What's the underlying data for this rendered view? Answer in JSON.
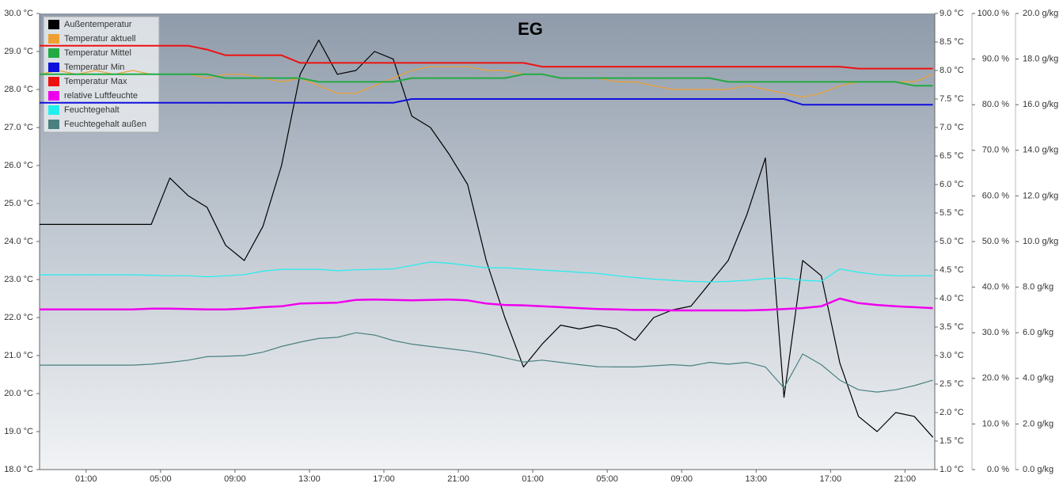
{
  "chart_data": {
    "type": "line",
    "title": "EG",
    "x": [
      0,
      1,
      2,
      3,
      4,
      5,
      6,
      7,
      8,
      9,
      10,
      11,
      12,
      13,
      14,
      15,
      16,
      17,
      18,
      19,
      20,
      21,
      22,
      23,
      24,
      25,
      26,
      27,
      28,
      29,
      30,
      31,
      32,
      33,
      34,
      35,
      36,
      37,
      38,
      39,
      40,
      41,
      42,
      43,
      44,
      45,
      46,
      47,
      48
    ],
    "xlim": [
      0,
      48.1
    ],
    "xticks": [
      {
        "value": 2.5,
        "label": "01:00"
      },
      {
        "value": 6.5,
        "label": "05:00"
      },
      {
        "value": 10.5,
        "label": "09:00"
      },
      {
        "value": 14.5,
        "label": "13:00"
      },
      {
        "value": 18.5,
        "label": "17:00"
      },
      {
        "value": 22.5,
        "label": "21:00"
      },
      {
        "value": 26.5,
        "label": "01:00"
      },
      {
        "value": 30.5,
        "label": "05:00"
      },
      {
        "value": 34.5,
        "label": "09:00"
      },
      {
        "value": 38.5,
        "label": "13:00"
      },
      {
        "value": 42.5,
        "label": "17:00"
      },
      {
        "value": 46.5,
        "label": "21:00"
      }
    ],
    "ylim": [
      18,
      30
    ],
    "yticks": [
      {
        "value": 18,
        "label": "18.0 °C"
      },
      {
        "value": 19,
        "label": "19.0 °C"
      },
      {
        "value": 20,
        "label": "20.0 °C"
      },
      {
        "value": 21,
        "label": "21.0 °C"
      },
      {
        "value": 22,
        "label": "22.0 °C"
      },
      {
        "value": 23,
        "label": "23.0 °C"
      },
      {
        "value": 24,
        "label": "24.0 °C"
      },
      {
        "value": 25,
        "label": "25.0 °C"
      },
      {
        "value": 26,
        "label": "26.0 °C"
      },
      {
        "value": 27,
        "label": "27.0 °C"
      },
      {
        "value": 28,
        "label": "28.0 °C"
      },
      {
        "value": 29,
        "label": "29.0 °C"
      },
      {
        "value": 30,
        "label": "30.0 °C"
      }
    ],
    "y2lim": [
      1,
      9
    ],
    "y2ticks": [
      {
        "value": 1,
        "label": "1.0 °C"
      },
      {
        "value": 1.5,
        "label": "1.5 °C"
      },
      {
        "value": 2,
        "label": "2.0 °C"
      },
      {
        "value": 2.5,
        "label": "2.5 °C"
      },
      {
        "value": 3,
        "label": "3.0 °C"
      },
      {
        "value": 3.5,
        "label": "3.5 °C"
      },
      {
        "value": 4,
        "label": "4.0 °C"
      },
      {
        "value": 4.5,
        "label": "4.5 °C"
      },
      {
        "value": 5,
        "label": "5.0 °C"
      },
      {
        "value": 5.5,
        "label": "5.5 °C"
      },
      {
        "value": 6,
        "label": "6.0 °C"
      },
      {
        "value": 6.5,
        "label": "6.5 °C"
      },
      {
        "value": 7,
        "label": "7.0 °C"
      },
      {
        "value": 7.5,
        "label": "7.5 °C"
      },
      {
        "value": 8,
        "label": "8.0 °C"
      },
      {
        "value": 8.5,
        "label": "8.5 °C"
      },
      {
        "value": 9,
        "label": "9.0 °C"
      }
    ],
    "y3lim": [
      0,
      100
    ],
    "y3ticks": [
      {
        "value": 0,
        "label": "0.0 %"
      },
      {
        "value": 10,
        "label": "10.0 %"
      },
      {
        "value": 20,
        "label": "20.0 %"
      },
      {
        "value": 30,
        "label": "30.0 %"
      },
      {
        "value": 40,
        "label": "40.0 %"
      },
      {
        "value": 50,
        "label": "50.0 %"
      },
      {
        "value": 60,
        "label": "60.0 %"
      },
      {
        "value": 70,
        "label": "70.0 %"
      },
      {
        "value": 80,
        "label": "80.0 %"
      },
      {
        "value": 90,
        "label": "90.0 %"
      },
      {
        "value": 100,
        "label": "100.0 %"
      }
    ],
    "y4lim": [
      0,
      20
    ],
    "y4ticks": [
      {
        "value": 0,
        "label": "0.0 g/kg"
      },
      {
        "value": 2,
        "label": "2.0 g/kg"
      },
      {
        "value": 4,
        "label": "4.0 g/kg"
      },
      {
        "value": 6,
        "label": "6.0 g/kg"
      },
      {
        "value": 8,
        "label": "8.0 g/kg"
      },
      {
        "value": 10,
        "label": "10.0 g/kg"
      },
      {
        "value": 12,
        "label": "12.0 g/kg"
      },
      {
        "value": 14,
        "label": "14.0 g/kg"
      },
      {
        "value": 16,
        "label": "16.0 g/kg"
      },
      {
        "value": 18,
        "label": "18.0 g/kg"
      },
      {
        "value": 20,
        "label": "20.0 g/kg"
      }
    ],
    "series": [
      {
        "name": "Außentemperatur",
        "color": "#000000",
        "values": [
          24.45,
          24.45,
          24.45,
          24.45,
          24.45,
          24.45,
          24.45,
          25.67,
          25.2,
          24.9,
          23.9,
          23.5,
          24.4,
          26.0,
          28.4,
          29.3,
          28.4,
          28.5,
          29.0,
          28.8,
          27.3,
          27.0,
          26.3,
          25.5,
          23.5,
          22.0,
          20.7,
          21.3,
          21.8,
          21.7,
          21.8,
          21.7,
          21.4,
          22.0,
          22.2,
          22.3,
          22.9,
          23.5,
          24.7,
          26.2,
          19.9,
          23.5,
          23.1,
          20.8,
          19.4,
          19.0,
          19.5,
          19.4,
          18.85
        ]
      },
      {
        "name": "Temperatur aktuell",
        "color": "#f0a030",
        "values": [
          28.4,
          28.5,
          28.4,
          28.5,
          28.4,
          28.5,
          28.4,
          28.4,
          28.4,
          28.3,
          28.4,
          28.4,
          28.3,
          28.2,
          28.3,
          28.1,
          27.9,
          27.9,
          28.1,
          28.3,
          28.5,
          28.6,
          28.6,
          28.6,
          28.5,
          28.5,
          28.4,
          28.4,
          28.3,
          28.3,
          28.3,
          28.2,
          28.2,
          28.1,
          28.0,
          28.0,
          28.0,
          28.0,
          28.1,
          28.0,
          27.9,
          27.8,
          27.9,
          28.1,
          28.2,
          28.2,
          28.2,
          28.2,
          28.4
        ]
      },
      {
        "name": "Temperatur Mittel",
        "color": "#22aa44",
        "values": [
          28.4,
          28.4,
          28.4,
          28.4,
          28.4,
          28.4,
          28.4,
          28.4,
          28.4,
          28.4,
          28.3,
          28.3,
          28.3,
          28.3,
          28.3,
          28.2,
          28.2,
          28.2,
          28.2,
          28.2,
          28.3,
          28.3,
          28.3,
          28.3,
          28.3,
          28.3,
          28.4,
          28.4,
          28.3,
          28.3,
          28.3,
          28.3,
          28.3,
          28.3,
          28.3,
          28.3,
          28.3,
          28.2,
          28.2,
          28.2,
          28.2,
          28.2,
          28.2,
          28.2,
          28.2,
          28.2,
          28.2,
          28.1,
          28.1
        ]
      },
      {
        "name": "Temperatur Min",
        "color": "#1010dd",
        "values": [
          27.65,
          27.65,
          27.65,
          27.65,
          27.65,
          27.65,
          27.65,
          27.65,
          27.65,
          27.65,
          27.65,
          27.65,
          27.65,
          27.65,
          27.65,
          27.65,
          27.65,
          27.65,
          27.65,
          27.65,
          27.75,
          27.75,
          27.75,
          27.75,
          27.75,
          27.75,
          27.75,
          27.75,
          27.75,
          27.75,
          27.75,
          27.75,
          27.75,
          27.75,
          27.75,
          27.75,
          27.75,
          27.75,
          27.75,
          27.75,
          27.75,
          27.6,
          27.6,
          27.6,
          27.6,
          27.6,
          27.6,
          27.6,
          27.6
        ]
      },
      {
        "name": "Temperatur Max",
        "color": "#ee1111",
        "values": [
          29.15,
          29.15,
          29.15,
          29.15,
          29.15,
          29.15,
          29.15,
          29.15,
          29.15,
          29.05,
          28.9,
          28.9,
          28.9,
          28.9,
          28.7,
          28.7,
          28.7,
          28.7,
          28.7,
          28.7,
          28.7,
          28.7,
          28.7,
          28.7,
          28.7,
          28.7,
          28.7,
          28.6,
          28.6,
          28.6,
          28.6,
          28.6,
          28.6,
          28.6,
          28.6,
          28.6,
          28.6,
          28.6,
          28.6,
          28.6,
          28.6,
          28.6,
          28.6,
          28.6,
          28.55,
          28.55,
          28.55,
          28.55,
          28.55
        ]
      },
      {
        "name": "relative Luftfeuchte",
        "color": "#ee00ee",
        "axis": "y3",
        "values": [
          35.1,
          35.1,
          35.1,
          35.1,
          35.1,
          35.1,
          35.3,
          35.3,
          35.2,
          35.1,
          35.1,
          35.3,
          35.6,
          35.8,
          36.4,
          36.5,
          36.6,
          37.2,
          37.3,
          37.2,
          37.1,
          37.2,
          37.3,
          37.1,
          36.4,
          36.1,
          36.0,
          35.8,
          35.6,
          35.4,
          35.2,
          35.1,
          35.0,
          35.0,
          34.9,
          34.9,
          34.9,
          34.9,
          34.9,
          35.0,
          35.2,
          35.4,
          35.8,
          37.5,
          36.5,
          36.1,
          35.8,
          35.6,
          35.4
        ]
      },
      {
        "name": "Feuchtegehalt",
        "color": "#22eeee",
        "axis": "y4",
        "values": [
          8.54,
          8.54,
          8.54,
          8.54,
          8.54,
          8.54,
          8.52,
          8.5,
          8.5,
          8.45,
          8.5,
          8.55,
          8.7,
          8.78,
          8.78,
          8.78,
          8.72,
          8.76,
          8.78,
          8.8,
          8.95,
          9.1,
          9.05,
          8.95,
          8.85,
          8.85,
          8.8,
          8.75,
          8.7,
          8.65,
          8.6,
          8.5,
          8.42,
          8.35,
          8.3,
          8.25,
          8.23,
          8.25,
          8.3,
          8.37,
          8.4,
          8.3,
          8.26,
          8.8,
          8.65,
          8.55,
          8.5,
          8.5,
          8.5
        ]
      },
      {
        "name": "Feuchtegehalt außen",
        "color": "#4a8080",
        "axis": "y4",
        "values": [
          4.58,
          4.58,
          4.58,
          4.58,
          4.58,
          4.58,
          4.62,
          4.7,
          4.8,
          4.95,
          4.97,
          5.0,
          5.15,
          5.4,
          5.59,
          5.75,
          5.8,
          6.0,
          5.9,
          5.66,
          5.5,
          5.4,
          5.3,
          5.2,
          5.07,
          4.9,
          4.72,
          4.8,
          4.7,
          4.6,
          4.51,
          4.5,
          4.5,
          4.55,
          4.6,
          4.55,
          4.7,
          4.62,
          4.7,
          4.5,
          3.58,
          5.07,
          4.6,
          3.92,
          3.5,
          3.4,
          3.5,
          3.68,
          3.92
        ]
      }
    ]
  }
}
